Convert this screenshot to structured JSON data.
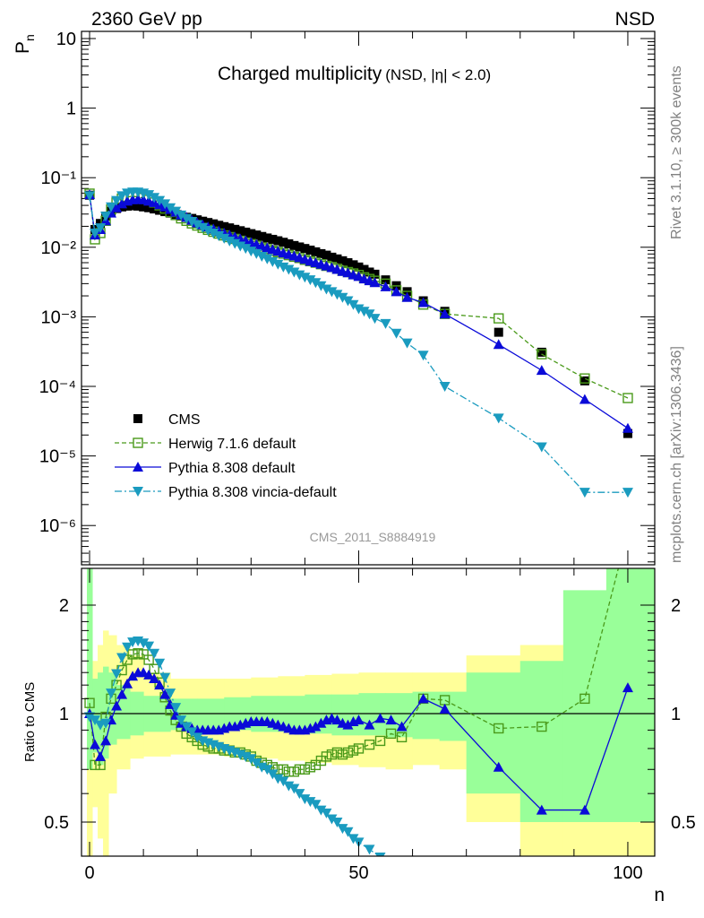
{
  "header": {
    "left": "2360 GeV pp",
    "right": "NSD"
  },
  "side_labels": {
    "rivet": "Rivet 3.1.10, ≥ 300k events",
    "mcplots": "mcplots.cern.ch [arXiv:1306.3436]"
  },
  "plot_title": {
    "main": "Charged multiplicity",
    "sub": "(NSD, |η| < 2.0)"
  },
  "analysis_id": "CMS_2011_S8884919",
  "colors": {
    "data": "#000000",
    "herwig": "#4a9a1a",
    "pythia": "#0a0ad8",
    "vincia": "#1a9bbf",
    "band_yellow": "#ffff99",
    "band_green": "#99ff99"
  },
  "chart_data": [
    {
      "type": "scatter",
      "ylabel": "P",
      "ylabel_sub": "n",
      "yscale": "log",
      "xlim": [
        -1.5,
        105
      ],
      "ylim": [
        3e-07,
        14
      ],
      "ytick_labels": [
        "10",
        "1",
        "10⁻¹",
        "10⁻²",
        "10⁻³",
        "10⁻⁴",
        "10⁻⁵",
        "10⁻⁶"
      ],
      "legend": [
        "CMS",
        "Herwig 7.1.6 default",
        "Pythia 8.308 default",
        "Pythia 8.308 vincia-default"
      ],
      "legend_position": "lower-left",
      "series": [
        {
          "name": "CMS",
          "x": [
            0,
            1,
            2,
            3,
            4,
            5,
            6,
            7,
            8,
            9,
            10,
            11,
            12,
            13,
            14,
            15,
            16,
            17,
            18,
            19,
            20,
            21,
            22,
            23,
            24,
            25,
            26,
            27,
            28,
            29,
            30,
            31,
            32,
            33,
            34,
            35,
            36,
            37,
            38,
            39,
            40,
            41,
            42,
            43,
            44,
            45,
            46,
            47,
            48,
            49,
            50,
            51,
            52,
            53,
            55,
            57,
            59,
            62,
            66,
            76,
            84,
            92,
            100
          ],
          "y": [
            0.056,
            0.018,
            0.022,
            0.028,
            0.033,
            0.036,
            0.038,
            0.039,
            0.0395,
            0.039,
            0.038,
            0.037,
            0.0355,
            0.034,
            0.0325,
            0.031,
            0.0295,
            0.028,
            0.027,
            0.026,
            0.0248,
            0.0237,
            0.0227,
            0.0217,
            0.0207,
            0.0198,
            0.019,
            0.0181,
            0.0173,
            0.0165,
            0.0157,
            0.015,
            0.0143,
            0.0136,
            0.013,
            0.0124,
            0.0118,
            0.0112,
            0.0106,
            0.0101,
            0.0096,
            0.0091,
            0.0086,
            0.0081,
            0.0077,
            0.0072,
            0.0068,
            0.0064,
            0.006,
            0.0056,
            0.0052,
            0.0048,
            0.0044,
            0.0041,
            0.0034,
            0.0028,
            0.0023,
            0.0017,
            0.0012,
            0.0006,
            0.00031,
            0.00012,
            2.1e-05
          ]
        },
        {
          "name": "Herwig 7.1.6 default",
          "x": [
            0,
            1,
            2,
            3,
            4,
            5,
            6,
            7,
            8,
            9,
            10,
            11,
            12,
            13,
            14,
            15,
            16,
            17,
            18,
            19,
            20,
            21,
            22,
            23,
            24,
            25,
            26,
            27,
            28,
            29,
            30,
            31,
            32,
            33,
            34,
            35,
            36,
            37,
            38,
            39,
            40,
            41,
            42,
            43,
            44,
            45,
            46,
            47,
            48,
            49,
            50,
            51,
            52,
            53,
            55,
            57,
            59,
            62,
            66,
            76,
            84,
            92,
            100
          ],
          "y": [
            0.059,
            0.013,
            0.016,
            0.024,
            0.035,
            0.044,
            0.05,
            0.053,
            0.054,
            0.053,
            0.051,
            0.048,
            0.044,
            0.04,
            0.036,
            0.032,
            0.029,
            0.026,
            0.024,
            0.022,
            0.0205,
            0.019,
            0.0178,
            0.0167,
            0.0157,
            0.0148,
            0.014,
            0.0132,
            0.0124,
            0.0117,
            0.0111,
            0.0105,
            0.0099,
            0.0094,
            0.0089,
            0.0085,
            0.0081,
            0.0077,
            0.0073,
            0.007,
            0.0066,
            0.0063,
            0.006,
            0.0057,
            0.0054,
            0.0052,
            0.0049,
            0.0046,
            0.0044,
            0.0042,
            0.004,
            0.0037,
            0.0035,
            0.0033,
            0.003,
            0.0024,
            0.002,
            0.0015,
            0.0011,
            0.00095,
            0.00029,
            0.00013,
            6.8e-05
          ]
        },
        {
          "name": "Pythia 8.308 default",
          "x": [
            0,
            1,
            2,
            3,
            4,
            5,
            6,
            7,
            8,
            9,
            10,
            11,
            12,
            13,
            14,
            15,
            16,
            17,
            18,
            19,
            20,
            21,
            22,
            23,
            24,
            25,
            26,
            27,
            28,
            29,
            30,
            31,
            32,
            33,
            34,
            35,
            36,
            37,
            38,
            39,
            40,
            41,
            42,
            43,
            44,
            45,
            46,
            47,
            48,
            49,
            50,
            51,
            52,
            53,
            55,
            57,
            59,
            62,
            66,
            76,
            84,
            92,
            100
          ],
          "y": [
            0.057,
            0.015,
            0.018,
            0.024,
            0.031,
            0.037,
            0.042,
            0.046,
            0.048,
            0.049,
            0.048,
            0.046,
            0.044,
            0.041,
            0.038,
            0.035,
            0.032,
            0.029,
            0.027,
            0.0245,
            0.0225,
            0.021,
            0.0196,
            0.0183,
            0.0171,
            0.016,
            0.015,
            0.0141,
            0.0132,
            0.0124,
            0.0117,
            0.011,
            0.0104,
            0.0098,
            0.0093,
            0.0088,
            0.0083,
            0.0079,
            0.0075,
            0.0071,
            0.0067,
            0.0063,
            0.006,
            0.0057,
            0.0054,
            0.0051,
            0.0048,
            0.0045,
            0.0043,
            0.004,
            0.0038,
            0.0035,
            0.0033,
            0.0031,
            0.0027,
            0.0023,
            0.0019,
            0.0016,
            0.0011,
            0.0004,
            0.00017,
            6.5e-05,
            2.5e-05
          ]
        },
        {
          "name": "Pythia 8.308 vincia-default",
          "x": [
            0,
            1,
            2,
            3,
            4,
            5,
            6,
            7,
            8,
            9,
            10,
            11,
            12,
            13,
            14,
            15,
            16,
            17,
            18,
            19,
            20,
            21,
            22,
            23,
            24,
            25,
            26,
            27,
            28,
            29,
            30,
            31,
            32,
            33,
            34,
            35,
            36,
            37,
            38,
            39,
            40,
            41,
            42,
            43,
            44,
            45,
            46,
            47,
            48,
            49,
            50,
            51,
            52,
            53,
            55,
            57,
            59,
            62,
            66,
            76,
            84,
            92,
            100
          ],
          "y": [
            0.055,
            0.016,
            0.019,
            0.028,
            0.038,
            0.047,
            0.055,
            0.06,
            0.062,
            0.062,
            0.06,
            0.057,
            0.052,
            0.047,
            0.042,
            0.037,
            0.033,
            0.029,
            0.026,
            0.0235,
            0.0212,
            0.0192,
            0.0175,
            0.016,
            0.0146,
            0.0134,
            0.0123,
            0.0113,
            0.0104,
            0.0096,
            0.0088,
            0.0081,
            0.0074,
            0.0068,
            0.0062,
            0.0057,
            0.0052,
            0.0048,
            0.0044,
            0.004,
            0.0037,
            0.0034,
            0.0031,
            0.0028,
            0.0025,
            0.0023,
            0.0021,
            0.0019,
            0.0017,
            0.0015,
            0.0013,
            0.0012,
            0.0011,
            0.00095,
            0.0008,
            0.00058,
            0.00042,
            0.00028,
            0.0001,
            3.5e-05,
            1.35e-05,
            3e-06,
            3e-06
          ]
        }
      ]
    },
    {
      "type": "line",
      "ylabel": "Ratio to CMS",
      "xlabel": "n",
      "xlim": [
        -1.5,
        105
      ],
      "ylim": [
        0.39,
        2.55
      ],
      "yscale": "log",
      "yticks": [
        0.5,
        1,
        2
      ],
      "ytick_labels": [
        "0.5",
        "1",
        "2"
      ],
      "xticks": [
        0,
        50,
        100
      ],
      "xtick_labels": [
        "0",
        "50",
        "100"
      ],
      "reference_line": 1,
      "band_yellow": {
        "edges": [
          -0.5,
          0.5,
          1.5,
          2.5,
          3.5,
          5,
          7.5,
          10,
          15,
          20,
          25,
          30,
          35,
          40,
          45,
          50,
          55,
          60,
          65,
          70,
          80,
          88,
          96,
          105
        ],
        "lo": [
          0.3,
          0.55,
          0.45,
          0.3,
          0.6,
          0.7,
          0.75,
          0.76,
          0.77,
          0.77,
          0.76,
          0.75,
          0.74,
          0.73,
          0.72,
          0.71,
          0.7,
          0.72,
          0.7,
          0.5,
          0.3,
          0.3,
          0.3
        ],
        "hi": [
          2.55,
          1.4,
          1.55,
          1.7,
          1.65,
          1.55,
          1.45,
          1.3,
          1.25,
          1.25,
          1.25,
          1.26,
          1.27,
          1.28,
          1.29,
          1.3,
          1.3,
          1.3,
          1.3,
          1.45,
          1.55,
          1.7,
          2.55
        ]
      },
      "band_green": {
        "edges": [
          -0.5,
          0.5,
          1.5,
          2.5,
          3.5,
          5,
          7.5,
          10,
          15,
          20,
          25,
          30,
          35,
          40,
          45,
          50,
          55,
          60,
          65,
          70,
          80,
          88,
          96,
          105
        ],
        "lo": [
          0.7,
          0.78,
          0.72,
          0.75,
          0.82,
          0.85,
          0.87,
          0.89,
          0.9,
          0.9,
          0.9,
          0.89,
          0.89,
          0.88,
          0.87,
          0.87,
          0.86,
          0.85,
          0.84,
          0.6,
          0.5,
          0.5,
          0.5
        ],
        "hi": [
          2.55,
          1.25,
          1.3,
          1.35,
          1.3,
          1.2,
          1.15,
          1.12,
          1.1,
          1.1,
          1.11,
          1.12,
          1.12,
          1.13,
          1.13,
          1.14,
          1.14,
          1.15,
          1.15,
          1.3,
          1.4,
          2.2,
          2.55
        ]
      },
      "series": [
        {
          "name": "Herwig 7.1.6 default",
          "x": [
            0,
            1,
            2,
            3,
            4,
            5,
            6,
            7,
            8,
            9,
            10,
            11,
            12,
            13,
            14,
            15,
            16,
            17,
            18,
            19,
            20,
            21,
            22,
            23,
            24,
            25,
            26,
            27,
            28,
            29,
            30,
            31,
            32,
            33,
            34,
            35,
            36,
            37,
            38,
            39,
            40,
            41,
            42,
            43,
            44,
            45,
            46,
            47,
            48,
            49,
            50,
            52,
            54,
            56,
            58,
            62,
            66,
            76,
            84,
            92,
            100
          ],
          "y": [
            1.07,
            0.72,
            0.72,
            0.98,
            1.1,
            1.2,
            1.32,
            1.41,
            1.46,
            1.47,
            1.46,
            1.41,
            1.33,
            1.22,
            1.11,
            1.02,
            0.96,
            0.92,
            0.88,
            0.86,
            0.84,
            0.82,
            0.81,
            0.8,
            0.8,
            0.79,
            0.79,
            0.78,
            0.78,
            0.77,
            0.76,
            0.74,
            0.73,
            0.72,
            0.71,
            0.7,
            0.7,
            0.69,
            0.69,
            0.7,
            0.7,
            0.71,
            0.72,
            0.74,
            0.76,
            0.77,
            0.78,
            0.77,
            0.78,
            0.79,
            0.8,
            0.82,
            0.84,
            0.88,
            0.86,
            1.1,
            1.09,
            0.91,
            0.92,
            1.1,
            3.2
          ]
        },
        {
          "name": "Pythia 8.308 default",
          "x": [
            0,
            1,
            2,
            3,
            4,
            5,
            6,
            7,
            8,
            9,
            10,
            11,
            12,
            13,
            14,
            15,
            16,
            17,
            18,
            19,
            20,
            21,
            22,
            23,
            24,
            25,
            26,
            27,
            28,
            29,
            30,
            31,
            32,
            33,
            34,
            35,
            36,
            37,
            38,
            39,
            40,
            41,
            42,
            43,
            44,
            45,
            46,
            47,
            48,
            49,
            50,
            52,
            54,
            56,
            58,
            62,
            66,
            76,
            84,
            92,
            100
          ],
          "y": [
            1.0,
            0.82,
            0.76,
            0.84,
            0.96,
            1.05,
            1.13,
            1.21,
            1.27,
            1.3,
            1.3,
            1.28,
            1.25,
            1.2,
            1.13,
            1.06,
            0.99,
            0.94,
            0.92,
            0.91,
            0.9,
            0.9,
            0.9,
            0.9,
            0.9,
            0.91,
            0.92,
            0.92,
            0.93,
            0.94,
            0.95,
            0.95,
            0.95,
            0.95,
            0.94,
            0.93,
            0.92,
            0.91,
            0.9,
            0.9,
            0.9,
            0.91,
            0.92,
            0.94,
            0.96,
            0.97,
            0.96,
            0.94,
            0.93,
            0.95,
            0.96,
            0.93,
            0.97,
            0.96,
            0.92,
            1.1,
            1.03,
            0.71,
            0.54,
            0.54,
            1.18
          ]
        },
        {
          "name": "Pythia 8.308 vincia-default",
          "x": [
            0,
            1,
            2,
            3,
            4,
            5,
            6,
            7,
            8,
            9,
            10,
            11,
            12,
            13,
            14,
            15,
            16,
            17,
            18,
            19,
            20,
            21,
            22,
            23,
            24,
            25,
            26,
            27,
            28,
            29,
            30,
            31,
            32,
            33,
            34,
            35,
            36,
            37,
            38,
            39,
            40,
            41,
            42,
            43,
            44,
            45,
            46,
            47,
            48,
            49,
            50,
            52,
            54,
            56,
            58
          ],
          "y": [
            0.98,
            0.96,
            0.93,
            0.94,
            1.14,
            1.29,
            1.43,
            1.53,
            1.58,
            1.59,
            1.57,
            1.54,
            1.47,
            1.38,
            1.26,
            1.14,
            1.04,
            0.96,
            0.92,
            0.89,
            0.86,
            0.84,
            0.83,
            0.82,
            0.81,
            0.8,
            0.79,
            0.78,
            0.77,
            0.76,
            0.75,
            0.73,
            0.71,
            0.7,
            0.68,
            0.66,
            0.65,
            0.63,
            0.62,
            0.6,
            0.58,
            0.57,
            0.56,
            0.54,
            0.53,
            0.51,
            0.5,
            0.48,
            0.47,
            0.45,
            0.44,
            0.42,
            0.4,
            0.38,
            0.37
          ]
        }
      ]
    }
  ]
}
